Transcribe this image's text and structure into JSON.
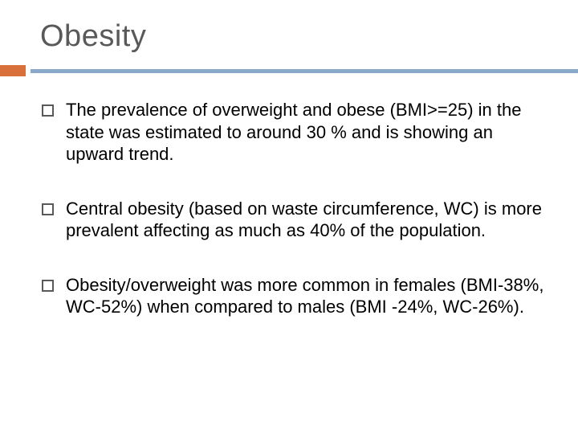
{
  "slide": {
    "title": "Obesity",
    "accent_color": "#d96f3a",
    "divider_color": "#8aa8c8",
    "title_color": "#595959",
    "text_color": "#000000",
    "background_color": "#ffffff",
    "title_fontsize": 38,
    "body_fontsize": 22,
    "bullets": [
      "The prevalence of overweight and obese (BMI>=25) in the state was estimated to  around 30 % and is showing an upward trend.",
      " Central obesity (based on waste circumference, WC) is more prevalent affecting as much as 40% of the population.",
      "Obesity/overweight was more common in females (BMI-38%, WC-52%) when compared to males (BMI -24%, WC-26%)."
    ]
  }
}
